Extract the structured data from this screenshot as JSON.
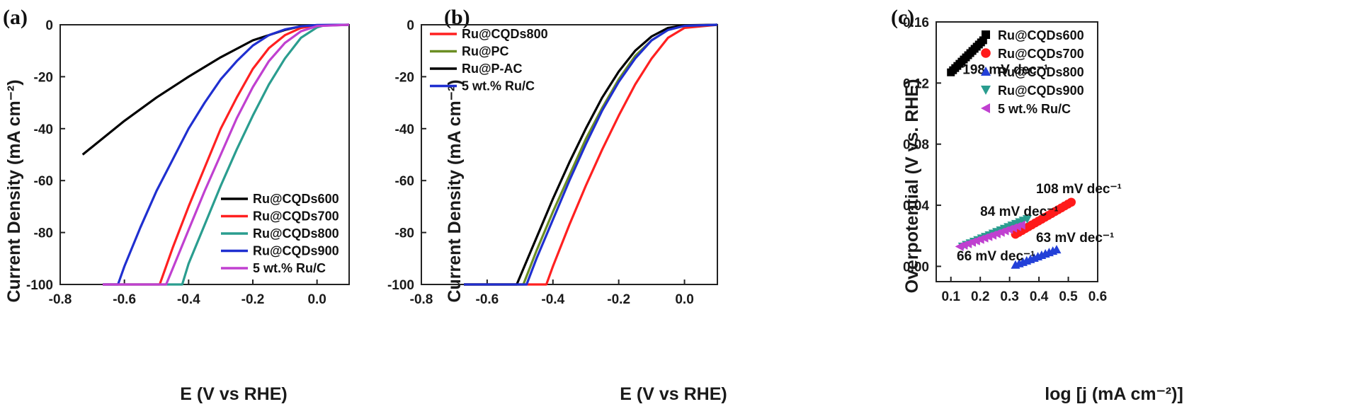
{
  "chart_data": [
    {
      "panel": "(a)",
      "type": "line",
      "xlabel": "E (V vs RHE)",
      "ylabel": "Current Density (mA cm⁻²)",
      "xlim": [
        -0.8,
        0.1
      ],
      "ylim": [
        -100,
        0
      ],
      "xticks": [
        "-0.8",
        "-0.6",
        "-0.4",
        "-0.2",
        "0.0"
      ],
      "yticks": [
        "0",
        "-20",
        "-40",
        "-60",
        "-80",
        "-100"
      ],
      "legend_position": "bottom-right",
      "series": [
        {
          "name": "Ru@CQDs600",
          "color": "#000000",
          "points": [
            [
              -0.73,
              -50
            ],
            [
              -0.6,
              -37
            ],
            [
              -0.5,
              -28
            ],
            [
              -0.4,
              -20
            ],
            [
              -0.3,
              -12.5
            ],
            [
              -0.2,
              -6
            ],
            [
              -0.1,
              -2
            ],
            [
              -0.05,
              -0.6
            ],
            [
              0.0,
              -0.2
            ],
            [
              0.1,
              0
            ]
          ]
        },
        {
          "name": "Ru@CQDs700",
          "color": "#ff2020",
          "points": [
            [
              -0.49,
              -100
            ],
            [
              -0.45,
              -86
            ],
            [
              -0.4,
              -70
            ],
            [
              -0.35,
              -55
            ],
            [
              -0.3,
              -40
            ],
            [
              -0.25,
              -28
            ],
            [
              -0.2,
              -17
            ],
            [
              -0.15,
              -9
            ],
            [
              -0.1,
              -4
            ],
            [
              -0.05,
              -1.2
            ],
            [
              0.0,
              -0.3
            ],
            [
              0.1,
              0
            ]
          ]
        },
        {
          "name": "Ru@CQDs800",
          "color": "#2a9d8f",
          "points": [
            [
              -0.42,
              -100
            ],
            [
              -0.4,
              -92
            ],
            [
              -0.35,
              -77
            ],
            [
              -0.3,
              -62
            ],
            [
              -0.25,
              -48
            ],
            [
              -0.2,
              -35
            ],
            [
              -0.15,
              -23
            ],
            [
              -0.1,
              -13
            ],
            [
              -0.05,
              -5
            ],
            [
              0.0,
              -1
            ],
            [
              0.02,
              -0.3
            ],
            [
              0.1,
              0
            ]
          ]
        },
        {
          "name": "Ru@CQDs900",
          "color": "#1f2fd0",
          "points": [
            [
              -0.62,
              -100
            ],
            [
              -0.6,
              -93
            ],
            [
              -0.55,
              -78
            ],
            [
              -0.5,
              -64
            ],
            [
              -0.45,
              -52
            ],
            [
              -0.4,
              -40
            ],
            [
              -0.35,
              -30
            ],
            [
              -0.3,
              -21
            ],
            [
              -0.25,
              -14
            ],
            [
              -0.2,
              -8
            ],
            [
              -0.15,
              -4
            ],
            [
              -0.1,
              -1.8
            ],
            [
              -0.05,
              -0.6
            ],
            [
              0.0,
              -0.1
            ],
            [
              0.1,
              0
            ]
          ]
        },
        {
          "name": "5 wt.% Ru/C",
          "color": "#c040d0",
          "points": [
            [
              -0.47,
              -100
            ],
            [
              -0.45,
              -94
            ],
            [
              -0.4,
              -79
            ],
            [
              -0.35,
              -64
            ],
            [
              -0.3,
              -50
            ],
            [
              -0.25,
              -36
            ],
            [
              -0.2,
              -24
            ],
            [
              -0.15,
              -14
            ],
            [
              -0.1,
              -7
            ],
            [
              -0.05,
              -2.5
            ],
            [
              0.0,
              -0.5
            ],
            [
              0.1,
              0
            ]
          ]
        }
      ]
    },
    {
      "panel": "(b)",
      "type": "line",
      "xlabel": "E (V vs RHE)",
      "ylabel": "Current Density (mA cm⁻²)",
      "xlim": [
        -0.8,
        0.1
      ],
      "ylim": [
        -100,
        0
      ],
      "xticks": [
        "-0.8",
        "-0.6",
        "-0.4",
        "-0.2",
        "0.0"
      ],
      "yticks": [
        "0",
        "-20",
        "-40",
        "-60",
        "-80",
        "-100"
      ],
      "legend_position": "top-left",
      "series": [
        {
          "name": "Ru@CQDs800",
          "color": "#ff2020",
          "points": [
            [
              -0.42,
              -100
            ],
            [
              -0.4,
              -93
            ],
            [
              -0.35,
              -77
            ],
            [
              -0.3,
              -62
            ],
            [
              -0.25,
              -48
            ],
            [
              -0.2,
              -35
            ],
            [
              -0.15,
              -23
            ],
            [
              -0.1,
              -13
            ],
            [
              -0.05,
              -5
            ],
            [
              0.0,
              -1.2
            ],
            [
              0.1,
              0
            ]
          ]
        },
        {
          "name": "Ru@PC",
          "color": "#6b8e23",
          "points": [
            [
              -0.49,
              -100
            ],
            [
              -0.45,
              -87
            ],
            [
              -0.4,
              -72
            ],
            [
              -0.35,
              -58
            ],
            [
              -0.3,
              -44
            ],
            [
              -0.25,
              -32
            ],
            [
              -0.2,
              -21
            ],
            [
              -0.15,
              -12
            ],
            [
              -0.1,
              -6
            ],
            [
              -0.05,
              -2
            ],
            [
              0.0,
              -0.4
            ],
            [
              0.1,
              0
            ]
          ]
        },
        {
          "name": "Ru@P-AC",
          "color": "#000000",
          "points": [
            [
              -0.51,
              -100
            ],
            [
              -0.45,
              -82
            ],
            [
              -0.4,
              -67
            ],
            [
              -0.35,
              -53
            ],
            [
              -0.3,
              -40
            ],
            [
              -0.25,
              -28
            ],
            [
              -0.2,
              -18
            ],
            [
              -0.15,
              -10
            ],
            [
              -0.1,
              -4.5
            ],
            [
              -0.05,
              -1.2
            ],
            [
              0.0,
              -0.2
            ],
            [
              0.1,
              0
            ]
          ]
        },
        {
          "name": "5 wt.% Ru/C",
          "color": "#1f2fd0",
          "points": [
            [
              -0.48,
              -100
            ],
            [
              -0.45,
              -90
            ],
            [
              -0.4,
              -75
            ],
            [
              -0.35,
              -60
            ],
            [
              -0.3,
              -46
            ],
            [
              -0.25,
              -33
            ],
            [
              -0.2,
              -22
            ],
            [
              -0.15,
              -13
            ],
            [
              -0.1,
              -6
            ],
            [
              -0.05,
              -2
            ],
            [
              0.0,
              -0.4
            ],
            [
              0.1,
              0
            ]
          ]
        }
      ]
    },
    {
      "panel": "(c)",
      "type": "scatter",
      "xlabel": "log [j (mA cm⁻²)]",
      "ylabel": "Overpotential (V vs. RHE)",
      "xlim": [
        0.05,
        0.6
      ],
      "ylim": [
        -0.01,
        0.16
      ],
      "xticks": [
        "0.1",
        "0.2",
        "0.3",
        "0.4",
        "0.5",
        "0.6"
      ],
      "yticks": [
        "0.00",
        "0.04",
        "0.08",
        "0.12",
        "0.16"
      ],
      "legend_position": "top-right",
      "series": [
        {
          "name": "Ru@CQDs600",
          "marker": "square",
          "color": "#000000",
          "x_range": [
            0.1,
            0.21
          ],
          "y_range": [
            0.127,
            0.148
          ],
          "count": 16
        },
        {
          "name": "Ru@CQDs700",
          "marker": "circle",
          "color": "#ff1a1a",
          "x_range": [
            0.32,
            0.51
          ],
          "y_range": [
            0.021,
            0.042
          ],
          "count": 18
        },
        {
          "name": "Ru@CQDs800",
          "marker": "triangle-up",
          "color": "#2340d8",
          "x_range": [
            0.32,
            0.46
          ],
          "y_range": [
            0.001,
            0.011
          ],
          "count": 12
        },
        {
          "name": "Ru@CQDs900",
          "marker": "triangle-down",
          "color": "#2a9d8f",
          "x_range": [
            0.14,
            0.36
          ],
          "y_range": [
            0.013,
            0.031
          ],
          "count": 18
        },
        {
          "name": "5 wt.% Ru/C",
          "marker": "triangle-left",
          "color": "#c040d0",
          "x_range": [
            0.13,
            0.34
          ],
          "y_range": [
            0.013,
            0.027
          ],
          "count": 16
        }
      ],
      "annotations": [
        {
          "text": "198 mV dec⁻¹",
          "x": 0.14,
          "y": 0.126
        },
        {
          "text": "108 mV dec⁻¹",
          "x": 0.39,
          "y": 0.048
        },
        {
          "text": "84 mV dec⁻¹",
          "x": 0.2,
          "y": 0.033
        },
        {
          "text": "63 mV dec⁻¹",
          "x": 0.39,
          "y": 0.016
        },
        {
          "text": "66 mV dec⁻¹",
          "x": 0.12,
          "y": 0.004
        }
      ]
    }
  ]
}
